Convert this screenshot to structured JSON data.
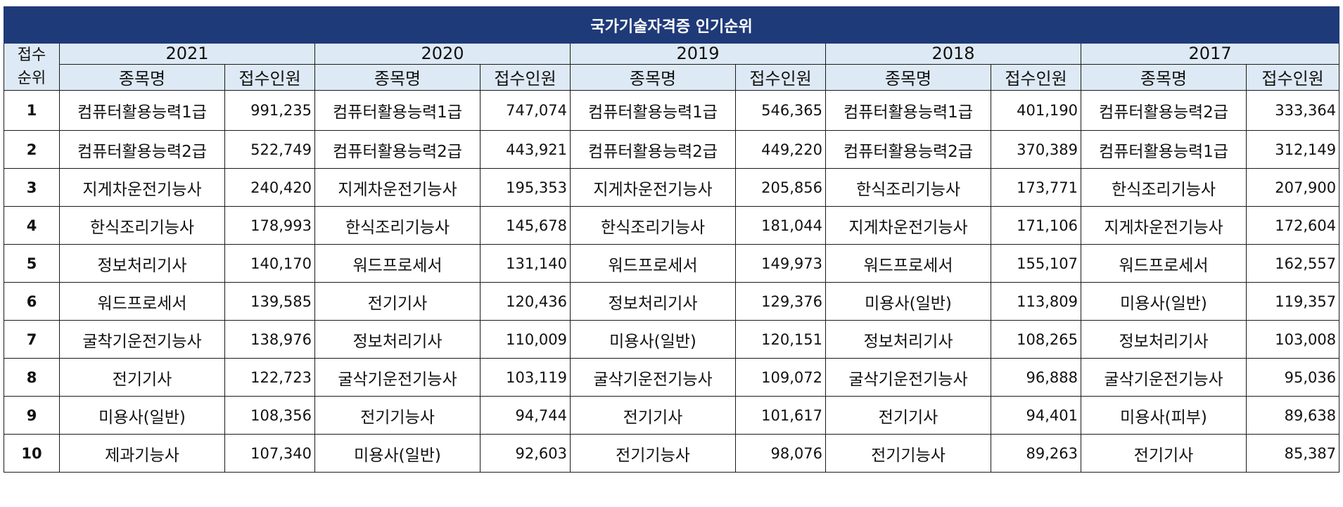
{
  "title": "국가기술자격증 인기순위",
  "rank_header": "접수\n순위",
  "rank_header_lines": [
    "접수",
    "순위"
  ],
  "name_header": "종목명",
  "count_header": "접수인원",
  "years": [
    "2021",
    "2020",
    "2019",
    "2018",
    "2017"
  ],
  "rows": [
    {
      "rank": "1",
      "cells": [
        {
          "name": "컴퓨터활용능력1급",
          "count": "991,235"
        },
        {
          "name": "컴퓨터활용능력1급",
          "count": "747,074"
        },
        {
          "name": "컴퓨터활용능력1급",
          "count": "546,365"
        },
        {
          "name": "컴퓨터활용능력1급",
          "count": "401,190"
        },
        {
          "name": "컴퓨터활용능력2급",
          "count": "333,364"
        }
      ]
    },
    {
      "rank": "2",
      "cells": [
        {
          "name": "컴퓨터활용능력2급",
          "count": "522,749"
        },
        {
          "name": "컴퓨터활용능력2급",
          "count": "443,921"
        },
        {
          "name": "컴퓨터활용능력2급",
          "count": "449,220"
        },
        {
          "name": "컴퓨터활용능력2급",
          "count": "370,389"
        },
        {
          "name": "컴퓨터활용능력1급",
          "count": "312,149"
        }
      ]
    },
    {
      "rank": "3",
      "cells": [
        {
          "name": "지게차운전기능사",
          "count": "240,420"
        },
        {
          "name": "지게차운전기능사",
          "count": "195,353"
        },
        {
          "name": "지게차운전기능사",
          "count": "205,856"
        },
        {
          "name": "한식조리기능사",
          "count": "173,771"
        },
        {
          "name": "한식조리기능사",
          "count": "207,900"
        }
      ]
    },
    {
      "rank": "4",
      "cells": [
        {
          "name": "한식조리기능사",
          "count": "178,993"
        },
        {
          "name": "한식조리기능사",
          "count": "145,678"
        },
        {
          "name": "한식조리기능사",
          "count": "181,044"
        },
        {
          "name": "지게차운전기능사",
          "count": "171,106"
        },
        {
          "name": "지게차운전기능사",
          "count": "172,604"
        }
      ]
    },
    {
      "rank": "5",
      "cells": [
        {
          "name": "정보처리기사",
          "count": "140,170"
        },
        {
          "name": "워드프로세서",
          "count": "131,140"
        },
        {
          "name": "워드프로세서",
          "count": "149,973"
        },
        {
          "name": "워드프로세서",
          "count": "155,107"
        },
        {
          "name": "워드프로세서",
          "count": "162,557"
        }
      ]
    },
    {
      "rank": "6",
      "cells": [
        {
          "name": "워드프로세서",
          "count": "139,585"
        },
        {
          "name": "전기기사",
          "count": "120,436"
        },
        {
          "name": "정보처리기사",
          "count": "129,376"
        },
        {
          "name": "미용사(일반)",
          "count": "113,809"
        },
        {
          "name": "미용사(일반)",
          "count": "119,357"
        }
      ]
    },
    {
      "rank": "7",
      "cells": [
        {
          "name": "굴착기운전기능사",
          "count": "138,976"
        },
        {
          "name": "정보처리기사",
          "count": "110,009"
        },
        {
          "name": "미용사(일반)",
          "count": "120,151"
        },
        {
          "name": "정보처리기사",
          "count": "108,265"
        },
        {
          "name": "정보처리기사",
          "count": "103,008"
        }
      ]
    },
    {
      "rank": "8",
      "cells": [
        {
          "name": "전기기사",
          "count": "122,723"
        },
        {
          "name": "굴삭기운전기능사",
          "count": "103,119"
        },
        {
          "name": "굴삭기운전기능사",
          "count": "109,072"
        },
        {
          "name": "굴삭기운전기능사",
          "count": "96,888"
        },
        {
          "name": "굴삭기운전기능사",
          "count": "95,036"
        }
      ]
    },
    {
      "rank": "9",
      "cells": [
        {
          "name": "미용사(일반)",
          "count": "108,356"
        },
        {
          "name": "전기기능사",
          "count": "94,744"
        },
        {
          "name": "전기기사",
          "count": "101,617"
        },
        {
          "name": "전기기사",
          "count": "94,401"
        },
        {
          "name": "미용사(피부)",
          "count": "89,638"
        }
      ]
    },
    {
      "rank": "10",
      "cells": [
        {
          "name": "제과기능사",
          "count": "107,340"
        },
        {
          "name": "미용사(일반)",
          "count": "92,603"
        },
        {
          "name": "전기기능사",
          "count": "98,076"
        },
        {
          "name": "전기기능사",
          "count": "89,263"
        },
        {
          "name": "전기기사",
          "count": "85,387"
        }
      ]
    }
  ]
}
